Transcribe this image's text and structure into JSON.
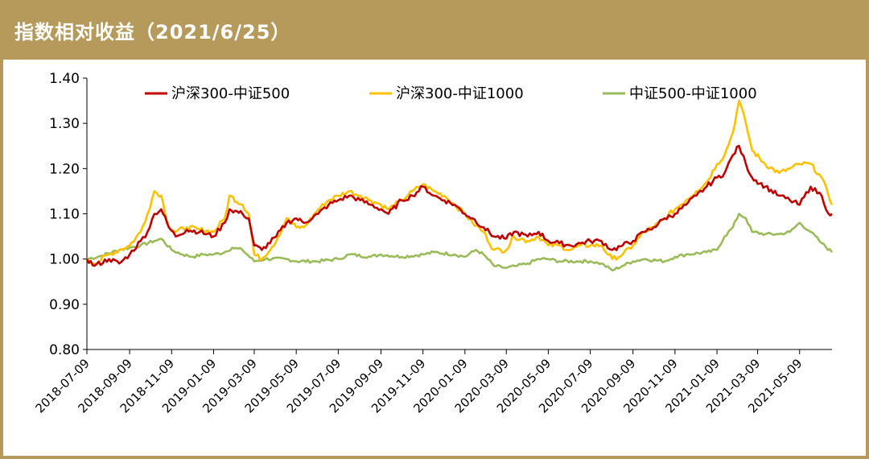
{
  "header": {
    "title": "指数相对收益（2021/6/25）"
  },
  "colors": {
    "header_bg": "#b59a5c",
    "s1": "#c00000",
    "s2": "#ffc000",
    "s3": "#9bbb59",
    "axis": "#000000"
  },
  "chart_data": {
    "type": "line",
    "title": "",
    "xlabel": "",
    "ylabel": "",
    "ylim": [
      0.8,
      1.4
    ],
    "yticks": [
      "0.80",
      "0.90",
      "1.00",
      "1.10",
      "1.20",
      "1.30",
      "1.40"
    ],
    "xticks": [
      "2018-07-09",
      "2018-09-09",
      "2018-11-09",
      "2019-01-09",
      "2019-03-09",
      "2019-05-09",
      "2019-07-09",
      "2019-09-09",
      "2019-11-09",
      "2020-01-09",
      "2020-03-09",
      "2020-05-09",
      "2020-07-09",
      "2020-09-09",
      "2020-11-09",
      "2021-01-09",
      "2021-03-09",
      "2021-05-09"
    ],
    "legend_position": "top",
    "grid": false,
    "series": [
      {
        "name": "沪深300-中证500",
        "points": [
          [
            "2018-07-09",
            1.0
          ],
          [
            "2018-07-20",
            0.985
          ],
          [
            "2018-08-10",
            1.0
          ],
          [
            "2018-08-25",
            0.99
          ],
          [
            "2018-09-09",
            1.01
          ],
          [
            "2018-09-25",
            1.04
          ],
          [
            "2018-10-05",
            1.06
          ],
          [
            "2018-10-15",
            1.1
          ],
          [
            "2018-10-25",
            1.11
          ],
          [
            "2018-11-05",
            1.07
          ],
          [
            "2018-11-15",
            1.05
          ],
          [
            "2018-12-01",
            1.065
          ],
          [
            "2018-12-20",
            1.06
          ],
          [
            "2019-01-09",
            1.05
          ],
          [
            "2019-01-25",
            1.08
          ],
          [
            "2019-02-01",
            1.11
          ],
          [
            "2019-02-20",
            1.1
          ],
          [
            "2019-03-01",
            1.09
          ],
          [
            "2019-03-09",
            1.03
          ],
          [
            "2019-03-20",
            1.02
          ],
          [
            "2019-04-10",
            1.05
          ],
          [
            "2019-04-25",
            1.08
          ],
          [
            "2019-05-09",
            1.09
          ],
          [
            "2019-05-20",
            1.08
          ],
          [
            "2019-06-10",
            1.1
          ],
          [
            "2019-06-25",
            1.12
          ],
          [
            "2019-07-09",
            1.13
          ],
          [
            "2019-07-25",
            1.14
          ],
          [
            "2019-08-10",
            1.13
          ],
          [
            "2019-08-25",
            1.12
          ],
          [
            "2019-09-09",
            1.11
          ],
          [
            "2019-09-20",
            1.1
          ],
          [
            "2019-10-09",
            1.13
          ],
          [
            "2019-10-25",
            1.14
          ],
          [
            "2019-11-09",
            1.16
          ],
          [
            "2019-11-25",
            1.14
          ],
          [
            "2019-12-10",
            1.13
          ],
          [
            "2019-12-25",
            1.12
          ],
          [
            "2020-01-09",
            1.1
          ],
          [
            "2020-01-20",
            1.09
          ],
          [
            "2020-02-05",
            1.07
          ],
          [
            "2020-02-20",
            1.05
          ],
          [
            "2020-03-09",
            1.045
          ],
          [
            "2020-03-20",
            1.06
          ],
          [
            "2020-04-09",
            1.05
          ],
          [
            "2020-04-25",
            1.06
          ],
          [
            "2020-05-09",
            1.04
          ],
          [
            "2020-05-25",
            1.035
          ],
          [
            "2020-06-10",
            1.03
          ],
          [
            "2020-06-25",
            1.035
          ],
          [
            "2020-07-09",
            1.04
          ],
          [
            "2020-07-25",
            1.04
          ],
          [
            "2020-08-10",
            1.02
          ],
          [
            "2020-08-25",
            1.03
          ],
          [
            "2020-09-09",
            1.04
          ],
          [
            "2020-09-25",
            1.06
          ],
          [
            "2020-10-09",
            1.07
          ],
          [
            "2020-10-25",
            1.09
          ],
          [
            "2020-11-09",
            1.1
          ],
          [
            "2020-11-25",
            1.12
          ],
          [
            "2020-12-10",
            1.14
          ],
          [
            "2020-12-25",
            1.16
          ],
          [
            "2021-01-09",
            1.18
          ],
          [
            "2021-01-20",
            1.19
          ],
          [
            "2021-02-01",
            1.23
          ],
          [
            "2021-02-10",
            1.25
          ],
          [
            "2021-02-20",
            1.21
          ],
          [
            "2021-03-01",
            1.18
          ],
          [
            "2021-03-20",
            1.16
          ],
          [
            "2021-04-09",
            1.14
          ],
          [
            "2021-04-25",
            1.13
          ],
          [
            "2021-05-09",
            1.12
          ],
          [
            "2021-05-25",
            1.16
          ],
          [
            "2021-06-10",
            1.14
          ],
          [
            "2021-06-20",
            1.1
          ],
          [
            "2021-06-25",
            1.1
          ]
        ]
      },
      {
        "name": "沪深300-中证1000",
        "points": [
          [
            "2018-07-09",
            1.0
          ],
          [
            "2018-07-20",
            0.99
          ],
          [
            "2018-08-10",
            1.01
          ],
          [
            "2018-08-25",
            1.02
          ],
          [
            "2018-09-09",
            1.03
          ],
          [
            "2018-09-25",
            1.06
          ],
          [
            "2018-10-05",
            1.1
          ],
          [
            "2018-10-15",
            1.15
          ],
          [
            "2018-10-25",
            1.14
          ],
          [
            "2018-11-05",
            1.07
          ],
          [
            "2018-11-15",
            1.06
          ],
          [
            "2018-12-01",
            1.07
          ],
          [
            "2018-12-20",
            1.065
          ],
          [
            "2019-01-09",
            1.06
          ],
          [
            "2019-01-25",
            1.09
          ],
          [
            "2019-02-01",
            1.14
          ],
          [
            "2019-02-20",
            1.12
          ],
          [
            "2019-03-01",
            1.1
          ],
          [
            "2019-03-09",
            1.01
          ],
          [
            "2019-03-20",
            1.0
          ],
          [
            "2019-04-10",
            1.04
          ],
          [
            "2019-04-25",
            1.09
          ],
          [
            "2019-05-09",
            1.07
          ],
          [
            "2019-05-20",
            1.07
          ],
          [
            "2019-06-10",
            1.11
          ],
          [
            "2019-06-25",
            1.13
          ],
          [
            "2019-07-09",
            1.14
          ],
          [
            "2019-07-25",
            1.15
          ],
          [
            "2019-08-10",
            1.14
          ],
          [
            "2019-08-25",
            1.13
          ],
          [
            "2019-09-09",
            1.12
          ],
          [
            "2019-09-20",
            1.11
          ],
          [
            "2019-10-09",
            1.13
          ],
          [
            "2019-10-25",
            1.15
          ],
          [
            "2019-11-09",
            1.165
          ],
          [
            "2019-11-25",
            1.15
          ],
          [
            "2019-12-10",
            1.14
          ],
          [
            "2019-12-25",
            1.12
          ],
          [
            "2020-01-09",
            1.1
          ],
          [
            "2020-01-20",
            1.08
          ],
          [
            "2020-02-05",
            1.06
          ],
          [
            "2020-02-20",
            1.02
          ],
          [
            "2020-03-09",
            1.02
          ],
          [
            "2020-03-20",
            1.05
          ],
          [
            "2020-04-09",
            1.04
          ],
          [
            "2020-04-25",
            1.05
          ],
          [
            "2020-05-09",
            1.03
          ],
          [
            "2020-05-25",
            1.03
          ],
          [
            "2020-06-10",
            1.02
          ],
          [
            "2020-06-25",
            1.03
          ],
          [
            "2020-07-09",
            1.03
          ],
          [
            "2020-07-25",
            1.03
          ],
          [
            "2020-08-10",
            1.0
          ],
          [
            "2020-08-25",
            1.01
          ],
          [
            "2020-09-09",
            1.03
          ],
          [
            "2020-09-25",
            1.06
          ],
          [
            "2020-10-09",
            1.07
          ],
          [
            "2020-10-25",
            1.09
          ],
          [
            "2020-11-09",
            1.11
          ],
          [
            "2020-11-25",
            1.13
          ],
          [
            "2020-12-10",
            1.15
          ],
          [
            "2020-12-25",
            1.17
          ],
          [
            "2021-01-09",
            1.21
          ],
          [
            "2021-01-20",
            1.23
          ],
          [
            "2021-02-01",
            1.28
          ],
          [
            "2021-02-10",
            1.35
          ],
          [
            "2021-02-20",
            1.3
          ],
          [
            "2021-03-01",
            1.24
          ],
          [
            "2021-03-20",
            1.21
          ],
          [
            "2021-04-09",
            1.19
          ],
          [
            "2021-04-25",
            1.2
          ],
          [
            "2021-05-09",
            1.21
          ],
          [
            "2021-05-25",
            1.21
          ],
          [
            "2021-06-10",
            1.18
          ],
          [
            "2021-06-20",
            1.14
          ],
          [
            "2021-06-25",
            1.12
          ]
        ]
      },
      {
        "name": "中证500-中证1000",
        "points": [
          [
            "2018-07-09",
            1.0
          ],
          [
            "2018-07-25",
            1.005
          ],
          [
            "2018-08-25",
            1.02
          ],
          [
            "2018-09-09",
            1.025
          ],
          [
            "2018-09-25",
            1.03
          ],
          [
            "2018-10-15",
            1.04
          ],
          [
            "2018-10-25",
            1.045
          ],
          [
            "2018-11-09",
            1.02
          ],
          [
            "2018-11-25",
            1.01
          ],
          [
            "2018-12-10",
            1.005
          ],
          [
            "2018-12-25",
            1.01
          ],
          [
            "2019-01-09",
            1.01
          ],
          [
            "2019-01-25",
            1.015
          ],
          [
            "2019-02-05",
            1.025
          ],
          [
            "2019-02-20",
            1.02
          ],
          [
            "2019-03-09",
            0.995
          ],
          [
            "2019-03-25",
            1.0
          ],
          [
            "2019-04-25",
            1.0
          ],
          [
            "2019-05-09",
            0.995
          ],
          [
            "2019-06-09",
            0.995
          ],
          [
            "2019-07-09",
            1.0
          ],
          [
            "2019-07-25",
            1.01
          ],
          [
            "2019-08-25",
            1.005
          ],
          [
            "2019-09-09",
            1.01
          ],
          [
            "2019-10-09",
            1.005
          ],
          [
            "2019-11-09",
            1.01
          ],
          [
            "2019-11-25",
            1.015
          ],
          [
            "2019-12-25",
            1.01
          ],
          [
            "2020-01-09",
            1.005
          ],
          [
            "2020-01-25",
            1.02
          ],
          [
            "2020-02-05",
            1.01
          ],
          [
            "2020-02-20",
            0.985
          ],
          [
            "2020-03-09",
            0.98
          ],
          [
            "2020-03-25",
            0.985
          ],
          [
            "2020-04-09",
            0.99
          ],
          [
            "2020-04-25",
            1.0
          ],
          [
            "2020-05-09",
            1.0
          ],
          [
            "2020-05-25",
            0.995
          ],
          [
            "2020-06-25",
            0.995
          ],
          [
            "2020-07-09",
            0.995
          ],
          [
            "2020-07-25",
            0.99
          ],
          [
            "2020-08-10",
            0.975
          ],
          [
            "2020-08-25",
            0.985
          ],
          [
            "2020-09-09",
            0.995
          ],
          [
            "2020-09-25",
            1.0
          ],
          [
            "2020-10-25",
            0.995
          ],
          [
            "2020-11-09",
            1.005
          ],
          [
            "2020-11-25",
            1.01
          ],
          [
            "2020-12-25",
            1.015
          ],
          [
            "2021-01-09",
            1.02
          ],
          [
            "2021-01-20",
            1.05
          ],
          [
            "2021-02-01",
            1.07
          ],
          [
            "2021-02-10",
            1.1
          ],
          [
            "2021-02-20",
            1.09
          ],
          [
            "2021-03-01",
            1.06
          ],
          [
            "2021-03-20",
            1.055
          ],
          [
            "2021-04-09",
            1.055
          ],
          [
            "2021-04-25",
            1.06
          ],
          [
            "2021-05-09",
            1.08
          ],
          [
            "2021-05-25",
            1.06
          ],
          [
            "2021-06-10",
            1.035
          ],
          [
            "2021-06-25",
            1.015
          ]
        ]
      }
    ]
  }
}
